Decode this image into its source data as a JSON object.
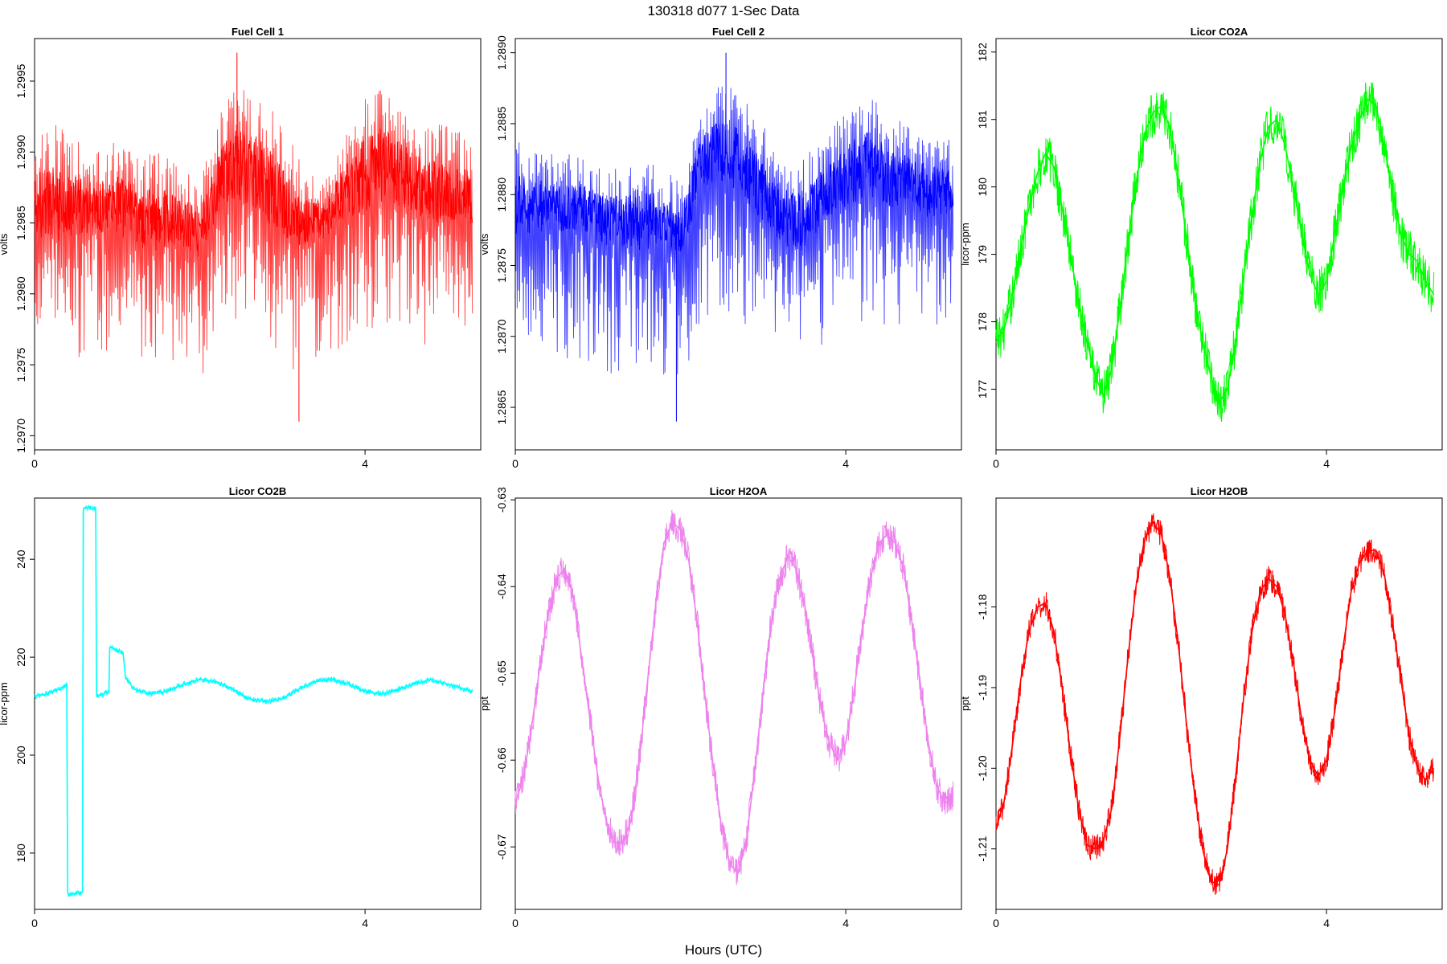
{
  "figure": {
    "title": "130318   d077   1-Sec Data",
    "xlabel": "Hours (UTC)"
  },
  "chart_data": [
    {
      "type": "line",
      "title": "Fuel Cell 1",
      "ylabel": "volts",
      "color": "#ff0000",
      "xlim": [
        0,
        5.4
      ],
      "ylim": [
        1.2969,
        1.2998
      ],
      "xticks": [
        0,
        4
      ],
      "yticks": [
        1.297,
        1.2975,
        1.298,
        1.2985,
        1.299,
        1.2995
      ],
      "ytick_labels": [
        "1.2970",
        "1.2975",
        "1.2980",
        "1.2985",
        "1.2990",
        "1.2995"
      ],
      "x": [
        0,
        0.25,
        0.5,
        0.75,
        1.0,
        1.25,
        1.5,
        1.75,
        2.0,
        2.25,
        2.5,
        2.75,
        3.0,
        3.25,
        3.5,
        3.75,
        4.0,
        4.25,
        4.5,
        4.75,
        5.0,
        5.25,
        5.3
      ],
      "y_upper": [
        1.2991,
        1.2992,
        1.2991,
        1.299,
        1.2991,
        1.299,
        1.299,
        1.2989,
        1.2988,
        1.2993,
        1.2995,
        1.2994,
        1.2992,
        1.2989,
        1.2988,
        1.2991,
        1.2994,
        1.2995,
        1.2993,
        1.2992,
        1.2992,
        1.2991,
        1.299
      ],
      "y_center": [
        1.2986,
        1.2986,
        1.2986,
        1.2986,
        1.2986,
        1.2985,
        1.2985,
        1.2985,
        1.2984,
        1.2988,
        1.2989,
        1.2988,
        1.2986,
        1.2985,
        1.2985,
        1.2987,
        1.2988,
        1.2989,
        1.2988,
        1.2987,
        1.2987,
        1.2987,
        1.2986
      ],
      "y_lower": [
        1.2977,
        1.2976,
        1.2975,
        1.2976,
        1.2975,
        1.2974,
        1.2975,
        1.2975,
        1.2973,
        1.2978,
        1.2978,
        1.2977,
        1.2975,
        1.2974,
        1.2976,
        1.2976,
        1.2977,
        1.2978,
        1.2977,
        1.2976,
        1.2977,
        1.2977,
        1.2978
      ],
      "y_min": {
        "x": 3.2,
        "y": 1.2971
      },
      "y_max": {
        "x": 2.45,
        "y": 1.2997
      }
    },
    {
      "type": "line",
      "title": "Fuel Cell 2",
      "ylabel": "volts",
      "color": "#0000ff",
      "xlim": [
        0,
        5.4
      ],
      "ylim": [
        1.2862,
        1.2891
      ],
      "xticks": [
        0,
        4
      ],
      "yticks": [
        1.2865,
        1.287,
        1.2875,
        1.288,
        1.2885,
        1.289
      ],
      "ytick_labels": [
        "1.2865",
        "1.2870",
        "1.2875",
        "1.2880",
        "1.2885",
        "1.2890"
      ],
      "x": [
        0,
        0.25,
        0.5,
        0.75,
        1.0,
        1.25,
        1.5,
        1.75,
        2.0,
        2.25,
        2.5,
        2.75,
        3.0,
        3.25,
        3.5,
        3.75,
        4.0,
        4.25,
        4.5,
        4.75,
        5.0,
        5.25,
        5.3
      ],
      "y_upper": [
        1.2884,
        1.2883,
        1.2883,
        1.2883,
        1.2882,
        1.2882,
        1.2883,
        1.2882,
        1.2881,
        1.2886,
        1.2888,
        1.2887,
        1.2885,
        1.2883,
        1.2883,
        1.2884,
        1.2886,
        1.2887,
        1.2886,
        1.2885,
        1.2884,
        1.2884,
        1.2883
      ],
      "y_center": [
        1.2879,
        1.2879,
        1.2879,
        1.2879,
        1.2878,
        1.2878,
        1.2878,
        1.2878,
        1.2877,
        1.2882,
        1.2883,
        1.2882,
        1.288,
        1.2878,
        1.2878,
        1.288,
        1.2881,
        1.2882,
        1.2881,
        1.2881,
        1.288,
        1.288,
        1.2879
      ],
      "y_lower": [
        1.287,
        1.2869,
        1.2868,
        1.2868,
        1.2868,
        1.2867,
        1.2868,
        1.2867,
        1.2866,
        1.2871,
        1.2872,
        1.2871,
        1.2869,
        1.2868,
        1.2869,
        1.2869,
        1.287,
        1.2871,
        1.287,
        1.287,
        1.2871,
        1.287,
        1.2871
      ],
      "y_min": {
        "x": 1.95,
        "y": 1.2864
      },
      "y_max": {
        "x": 2.55,
        "y": 1.289
      }
    },
    {
      "type": "line",
      "title": "Licor CO2A",
      "ylabel": "licor-ppm",
      "color": "#00ff00",
      "xlim": [
        0,
        5.4
      ],
      "ylim": [
        176.1,
        182.2
      ],
      "xticks": [
        0,
        4
      ],
      "yticks": [
        177,
        178,
        179,
        180,
        181,
        182
      ],
      "ytick_labels": [
        "177",
        "178",
        "179",
        "180",
        "181",
        "182"
      ],
      "x": [
        0,
        0.1,
        0.2,
        0.3,
        0.4,
        0.5,
        0.6,
        0.7,
        0.8,
        0.9,
        1.0,
        1.1,
        1.2,
        1.3,
        1.4,
        1.5,
        1.6,
        1.7,
        1.8,
        1.9,
        2.0,
        2.1,
        2.2,
        2.3,
        2.4,
        2.5,
        2.6,
        2.7,
        2.8,
        2.9,
        3.0,
        3.1,
        3.2,
        3.3,
        3.4,
        3.5,
        3.6,
        3.7,
        3.8,
        3.9,
        4.0,
        4.1,
        4.2,
        4.3,
        4.4,
        4.5,
        4.6,
        4.7,
        4.8,
        4.9,
        5.0,
        5.1,
        5.2,
        5.3
      ],
      "y": [
        177.7,
        177.9,
        178.4,
        179.1,
        179.7,
        180.2,
        180.5,
        180.3,
        179.7,
        179.0,
        178.3,
        177.7,
        177.2,
        176.9,
        177.3,
        178.2,
        179.2,
        180.1,
        180.8,
        181.1,
        181.2,
        180.9,
        180.2,
        179.3,
        178.4,
        177.7,
        177.2,
        176.8,
        177.0,
        177.7,
        178.7,
        179.6,
        180.4,
        180.9,
        181.0,
        180.6,
        180.0,
        179.3,
        178.7,
        178.4,
        178.6,
        179.3,
        180.0,
        180.6,
        181.0,
        181.3,
        181.2,
        180.6,
        179.9,
        179.3,
        179.0,
        178.9,
        178.6,
        178.4
      ],
      "noise": 0.35
    },
    {
      "type": "line",
      "title": "Licor CO2B",
      "ylabel": "licor-ppm",
      "color": "#00ffff",
      "xlim": [
        0,
        5.4
      ],
      "ylim": [
        168.5,
        252.5
      ],
      "xticks": [
        0,
        4
      ],
      "yticks": [
        180,
        200,
        220,
        240
      ],
      "ytick_labels": [
        "180",
        "200",
        "220",
        "240"
      ],
      "x": [
        0,
        0.15,
        0.3,
        0.39,
        0.4,
        0.41,
        0.58,
        0.59,
        0.6,
        0.74,
        0.75,
        0.76,
        0.9,
        0.91,
        0.92,
        1.07,
        1.1,
        1.2,
        1.4,
        1.6,
        1.8,
        2.0,
        2.2,
        2.4,
        2.6,
        2.8,
        3.0,
        3.2,
        3.4,
        3.6,
        3.8,
        4.0,
        4.2,
        4.4,
        4.6,
        4.8,
        5.0,
        5.2,
        5.3
      ],
      "y": [
        212,
        212.5,
        213.5,
        214.5,
        172,
        171.5,
        172,
        250,
        250.5,
        250.5,
        212,
        212,
        213,
        222,
        222,
        221,
        216,
        213.5,
        212.5,
        213,
        214.5,
        215.5,
        215,
        213.5,
        211.5,
        211,
        211.5,
        213.5,
        215,
        215.5,
        214.5,
        213,
        212.5,
        213.5,
        214.5,
        215.5,
        214.5,
        213.5,
        213
      ],
      "noise": 0.6
    },
    {
      "type": "line",
      "title": "Licor H2OA",
      "ylabel": "ppt",
      "color": "#ee82ee",
      "xlim": [
        0,
        5.4
      ],
      "ylim": [
        -0.6772,
        -0.6298
      ],
      "xticks": [
        0,
        4
      ],
      "yticks": [
        -0.67,
        -0.66,
        -0.65,
        -0.64,
        -0.63
      ],
      "ytick_labels": [
        "-0.67",
        "-0.66",
        "-0.65",
        "-0.64",
        "-0.63"
      ],
      "x": [
        0,
        0.1,
        0.2,
        0.3,
        0.4,
        0.5,
        0.6,
        0.7,
        0.8,
        0.9,
        1.0,
        1.1,
        1.2,
        1.3,
        1.4,
        1.5,
        1.6,
        1.7,
        1.8,
        1.9,
        2.0,
        2.1,
        2.2,
        2.3,
        2.4,
        2.5,
        2.6,
        2.7,
        2.8,
        2.9,
        3.0,
        3.1,
        3.2,
        3.3,
        3.4,
        3.5,
        3.6,
        3.7,
        3.8,
        3.9,
        4.0,
        4.1,
        4.2,
        4.3,
        4.4,
        4.5,
        4.6,
        4.7,
        4.8,
        4.9,
        5.0,
        5.1,
        5.2,
        5.3
      ],
      "y": [
        -0.665,
        -0.662,
        -0.656,
        -0.649,
        -0.643,
        -0.639,
        -0.638,
        -0.641,
        -0.648,
        -0.655,
        -0.662,
        -0.667,
        -0.6695,
        -0.6695,
        -0.667,
        -0.66,
        -0.651,
        -0.642,
        -0.635,
        -0.6325,
        -0.6335,
        -0.637,
        -0.644,
        -0.653,
        -0.661,
        -0.668,
        -0.672,
        -0.673,
        -0.669,
        -0.661,
        -0.652,
        -0.644,
        -0.639,
        -0.6365,
        -0.638,
        -0.642,
        -0.648,
        -0.654,
        -0.658,
        -0.66,
        -0.658,
        -0.652,
        -0.645,
        -0.639,
        -0.635,
        -0.634,
        -0.635,
        -0.638,
        -0.644,
        -0.651,
        -0.658,
        -0.663,
        -0.665,
        -0.664
      ],
      "noise": 0.0018
    },
    {
      "type": "line",
      "title": "Licor H2OB",
      "ylabel": "ppt",
      "color": "#ff0000",
      "xlim": [
        0,
        5.4
      ],
      "ylim": [
        -1.2175,
        -1.1665
      ],
      "xticks": [
        0,
        4
      ],
      "yticks": [
        -1.21,
        -1.2,
        -1.19,
        -1.18
      ],
      "ytick_labels": [
        "-1.21",
        "-1.20",
        "-1.19",
        "-1.18"
      ],
      "x": [
        0,
        0.1,
        0.2,
        0.3,
        0.4,
        0.5,
        0.6,
        0.7,
        0.8,
        0.9,
        1.0,
        1.1,
        1.2,
        1.3,
        1.4,
        1.5,
        1.6,
        1.7,
        1.8,
        1.9,
        2.0,
        2.1,
        2.2,
        2.3,
        2.4,
        2.5,
        2.6,
        2.7,
        2.8,
        2.9,
        3.0,
        3.1,
        3.2,
        3.3,
        3.4,
        3.5,
        3.6,
        3.7,
        3.8,
        3.9,
        4.0,
        4.1,
        4.2,
        4.3,
        4.4,
        4.5,
        4.6,
        4.7,
        4.8,
        4.9,
        5.0,
        5.1,
        5.2,
        5.3
      ],
      "y": [
        -1.2075,
        -1.204,
        -1.197,
        -1.189,
        -1.183,
        -1.18,
        -1.1795,
        -1.183,
        -1.19,
        -1.198,
        -1.205,
        -1.2095,
        -1.21,
        -1.209,
        -1.205,
        -1.196,
        -1.186,
        -1.177,
        -1.1715,
        -1.1695,
        -1.171,
        -1.176,
        -1.184,
        -1.194,
        -1.203,
        -1.21,
        -1.214,
        -1.2145,
        -1.21,
        -1.201,
        -1.191,
        -1.183,
        -1.178,
        -1.1765,
        -1.1775,
        -1.181,
        -1.187,
        -1.194,
        -1.199,
        -1.201,
        -1.199,
        -1.193,
        -1.185,
        -1.178,
        -1.1745,
        -1.173,
        -1.173,
        -1.176,
        -1.182,
        -1.189,
        -1.196,
        -1.2,
        -1.2015,
        -1.2
      ],
      "noise": 0.0016
    }
  ]
}
